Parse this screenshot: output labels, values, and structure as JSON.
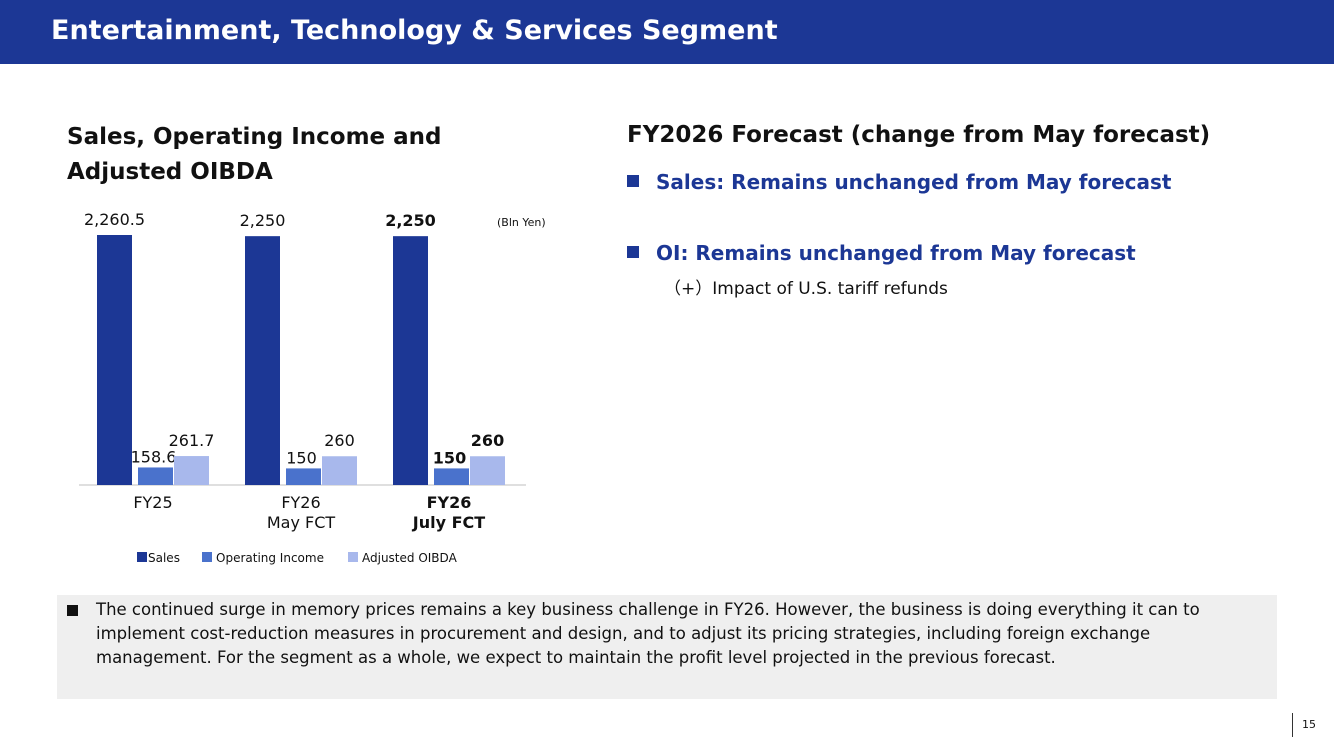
{
  "header": {
    "title": "Entertainment, Technology & Services Segment"
  },
  "chart_section": {
    "title_line1": "Sales, Operating Income and",
    "title_line2": "Adjusted OIBDA"
  },
  "chart_data": {
    "type": "bar",
    "unit_label": "(Bln Yen)",
    "categories": [
      {
        "line1": "FY25",
        "line2": "",
        "bold": false
      },
      {
        "line1": "FY26",
        "line2": "May FCT",
        "bold": false
      },
      {
        "line1": "FY26",
        "line2": "July FCT",
        "bold": true
      }
    ],
    "series": [
      {
        "name": "Sales",
        "color": "#1c3795",
        "values": [
          2260.5,
          2250,
          2250
        ],
        "labels": [
          "2,260.5",
          "2,250",
          "2,250"
        ]
      },
      {
        "name": "Operating Income",
        "color": "#4a72cc",
        "values": [
          158.6,
          150,
          150
        ],
        "labels": [
          "158.6",
          "150",
          "150"
        ]
      },
      {
        "name": "Adjusted OIBDA",
        "color": "#a8b8ec",
        "values": [
          261.7,
          260,
          260
        ],
        "labels": [
          "261.7",
          "260",
          "260"
        ]
      }
    ],
    "ylim": [
      0,
      2260.5
    ],
    "grid": false,
    "legend_position": "bottom"
  },
  "forecast": {
    "title": "FY2026 Forecast (change from May forecast)",
    "bullet_sales": "Sales: Remains unchanged from May forecast",
    "bullet_oi": "OI: Remains unchanged from May forecast",
    "oi_detail": "（+）Impact of U.S. tariff refunds"
  },
  "note": {
    "text": "The continued surge in memory prices remains a key business challenge in FY26. However, the business is doing everything it can to implement cost-reduction measures in procurement and design, and to adjust its pricing strategies, including foreign exchange management. For the segment as a whole, we expect to maintain the profit level projected in the previous forecast."
  },
  "page_number": "15"
}
